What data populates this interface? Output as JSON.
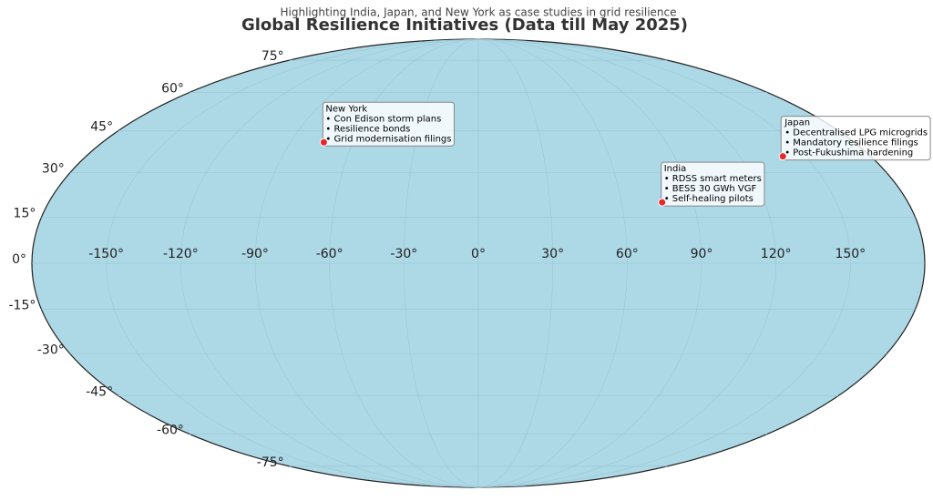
{
  "chart_data": {
    "type": "map",
    "projection": "mollweide",
    "title": "Global Resilience Initiatives (Data till May 2025)",
    "subtitle": "Highlighting India, Japan, and New York as case studies in grid resilience",
    "ocean_color": "#add8e6",
    "point_color": "#e8262b",
    "grid": true,
    "xlim": [
      -180,
      180
    ],
    "ylim": [
      -90,
      90
    ],
    "xticks": [
      {
        "value": -150,
        "label": "-150°"
      },
      {
        "value": -120,
        "label": "-120°"
      },
      {
        "value": -90,
        "label": "-90°"
      },
      {
        "value": -60,
        "label": "-60°"
      },
      {
        "value": -30,
        "label": "-30°"
      },
      {
        "value": 0,
        "label": "0°"
      },
      {
        "value": 30,
        "label": "30°"
      },
      {
        "value": 60,
        "label": "60°"
      },
      {
        "value": 90,
        "label": "90°"
      },
      {
        "value": 120,
        "label": "120°"
      },
      {
        "value": 150,
        "label": "150°"
      }
    ],
    "yticks": [
      {
        "value": -75,
        "label": "-75°"
      },
      {
        "value": -60,
        "label": "-60°"
      },
      {
        "value": -45,
        "label": "-45°"
      },
      {
        "value": -30,
        "label": "-30°"
      },
      {
        "value": -15,
        "label": "-15°"
      },
      {
        "value": 0,
        "label": "0°"
      },
      {
        "value": 15,
        "label": "15°"
      },
      {
        "value": 30,
        "label": "30°"
      },
      {
        "value": 45,
        "label": "45°"
      },
      {
        "value": 60,
        "label": "60°"
      },
      {
        "value": 75,
        "label": "75°"
      }
    ],
    "points": [
      {
        "name": "New York",
        "lon": -74.0,
        "lat": 40.7,
        "notes": [
          "• Con Edison storm plans",
          "• Resilience bonds",
          "• Grid modernisation filings"
        ]
      },
      {
        "name": "India",
        "lon": 77.0,
        "lat": 20.0,
        "notes": [
          "• RDSS smart meters",
          "• BESS 30 GWh VGF",
          "• Self-healing pilots"
        ]
      },
      {
        "name": "Japan",
        "lon": 139.7,
        "lat": 35.7,
        "notes": [
          "• Decentralised LPG microgrids",
          "• Mandatory resilience filings",
          "• Post-Fukushima hardening"
        ]
      }
    ]
  }
}
